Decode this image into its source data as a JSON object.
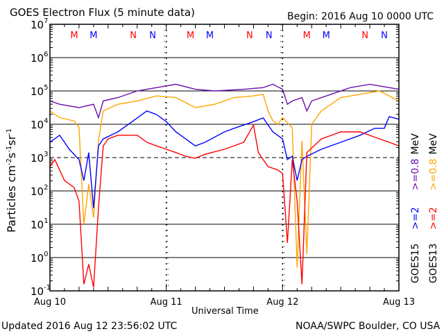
{
  "chart_data": {
    "type": "line",
    "title": "GOES Electron Flux (5 minute data)",
    "begin_label": "Begin: 2016 Aug 10 0000 UTC",
    "xlabel": "Universal Time",
    "ylabel": "Particles cm-2s-1sr-1",
    "ylabel_parts": {
      "base": "Particles cm",
      "e1": "-2",
      "s": "s",
      "e2": "-1",
      "sr": "sr",
      "e3": "-1"
    },
    "y_scale": "log",
    "ylim_log10": [
      -1,
      7
    ],
    "y_ticks": [
      {
        "base": "10",
        "exp": "7"
      },
      {
        "base": "10",
        "exp": "6"
      },
      {
        "base": "10",
        "exp": "5"
      },
      {
        "base": "10",
        "exp": "4"
      },
      {
        "base": "10",
        "exp": "3"
      },
      {
        "base": "10",
        "exp": "2"
      },
      {
        "base": "10",
        "exp": "1"
      },
      {
        "base": "10",
        "exp": "0"
      },
      {
        "base": "10",
        "exp": "-1"
      }
    ],
    "x_range_hours": [
      0,
      72
    ],
    "x_ticks": [
      {
        "hour": 0,
        "label": "Aug 10"
      },
      {
        "hour": 24,
        "label": "Aug 11"
      },
      {
        "hour": 48,
        "label": "Aug 12"
      },
      {
        "hour": 72,
        "label": "Aug 13"
      }
    ],
    "markers": [
      {
        "hour": 5,
        "label": "M",
        "color": "#ff0000"
      },
      {
        "hour": 9,
        "label": "M",
        "color": "#0000ff"
      },
      {
        "hour": 17.2,
        "label": "N",
        "color": "#ff0000"
      },
      {
        "hour": 21.2,
        "label": "N",
        "color": "#0000ff"
      },
      {
        "hour": 29,
        "label": "M",
        "color": "#ff0000"
      },
      {
        "hour": 33,
        "label": "M",
        "color": "#0000ff"
      },
      {
        "hour": 41.2,
        "label": "N",
        "color": "#ff0000"
      },
      {
        "hour": 45.2,
        "label": "N",
        "color": "#0000ff"
      },
      {
        "hour": 53,
        "label": "M",
        "color": "#ff0000"
      },
      {
        "hour": 57,
        "label": "M",
        "color": "#0000ff"
      },
      {
        "hour": 65,
        "label": "N",
        "color": "#ff0000"
      },
      {
        "hour": 69,
        "label": "N",
        "color": "#0000ff"
      }
    ],
    "legend": {
      "goes15": {
        "label": "GOES15",
        "s1": ">=2",
        "s2": ">=0.8",
        "unit": "MeV"
      },
      "goes13": {
        "label": "GOES13",
        "s1": ">=2",
        "s2": ">=0.8",
        "unit": "MeV"
      }
    },
    "series": [
      {
        "name": "GOES15 >=0.8 MeV",
        "color": "#6a0dad",
        "hours": [
          0,
          2,
          6,
          9,
          10,
          11,
          14,
          18,
          22,
          26,
          30,
          34,
          40,
          44,
          46,
          48,
          49,
          50,
          52,
          53,
          54,
          58,
          62,
          66,
          70,
          72
        ],
        "log10_values": [
          4.7,
          4.6,
          4.5,
          4.6,
          4.2,
          4.7,
          4.8,
          5.0,
          5.1,
          5.2,
          5.05,
          5.0,
          5.05,
          5.1,
          5.2,
          5.05,
          4.6,
          4.7,
          4.8,
          4.4,
          4.7,
          4.9,
          5.1,
          5.2,
          5.1,
          5.05
        ]
      },
      {
        "name": "GOES13 >=0.8 MeV",
        "color": "#ffa500",
        "hours": [
          0,
          2,
          5,
          6,
          7,
          8,
          9,
          10,
          11,
          14,
          18,
          22,
          26,
          30,
          34,
          38,
          42,
          44,
          45,
          46,
          47,
          48,
          50,
          51,
          52,
          53,
          54,
          56,
          60,
          64,
          68,
          72
        ],
        "log10_values": [
          4.4,
          4.2,
          4.1,
          3.9,
          1.0,
          2.2,
          1.2,
          3.5,
          4.4,
          4.6,
          4.7,
          4.85,
          4.8,
          4.5,
          4.6,
          4.8,
          4.85,
          4.9,
          4.4,
          4.1,
          4.0,
          4.2,
          3.9,
          -0.3,
          3.5,
          0.1,
          4.0,
          4.4,
          4.8,
          4.9,
          5.0,
          4.7
        ]
      },
      {
        "name": "GOES15 >=2 MeV",
        "color": "#0000ff",
        "hours": [
          0,
          2,
          4,
          6,
          7,
          8,
          9,
          10,
          11,
          14,
          18,
          20,
          22,
          24,
          26,
          28,
          30,
          32,
          36,
          38,
          42,
          44,
          46,
          48,
          49,
          50,
          51,
          52,
          53,
          56,
          60,
          64,
          67,
          69,
          70,
          72
        ],
        "log10_values": [
          3.46,
          3.67,
          3.25,
          2.94,
          2.31,
          3.15,
          1.48,
          3.35,
          3.56,
          3.77,
          4.19,
          4.4,
          4.29,
          4.08,
          3.77,
          3.56,
          3.35,
          3.46,
          3.77,
          3.88,
          4.08,
          4.19,
          3.77,
          3.56,
          2.94,
          3.04,
          2.31,
          2.94,
          3.04,
          3.25,
          3.46,
          3.67,
          3.88,
          3.88,
          4.23,
          4.15
        ]
      },
      {
        "name": "GOES13 >=2 MeV",
        "color": "#ff0000",
        "hours": [
          0,
          1,
          3,
          5,
          6,
          7,
          8,
          9,
          10,
          11,
          12,
          14,
          18,
          20,
          22,
          24,
          26,
          28,
          30,
          32,
          36,
          40,
          42,
          43,
          45,
          47,
          48,
          49,
          50,
          51,
          52,
          53,
          56,
          60,
          64,
          68,
          70,
          72
        ],
        "log10_values": [
          2.73,
          2.94,
          2.31,
          2.1,
          1.69,
          -0.8,
          -0.2,
          -0.9,
          1.48,
          3.35,
          3.56,
          3.67,
          3.67,
          3.46,
          3.35,
          3.25,
          3.15,
          3.04,
          2.98,
          3.1,
          3.25,
          3.46,
          3.98,
          3.15,
          2.73,
          2.63,
          2.52,
          0.44,
          2.94,
          1.69,
          -0.8,
          3.15,
          3.56,
          3.77,
          3.77,
          3.56,
          3.46,
          3.35
        ]
      }
    ]
  },
  "footer": {
    "updated": "Updated 2016 Aug 12 23:56:02 UTC",
    "credit": "NOAA/SWPC Boulder, CO USA"
  }
}
